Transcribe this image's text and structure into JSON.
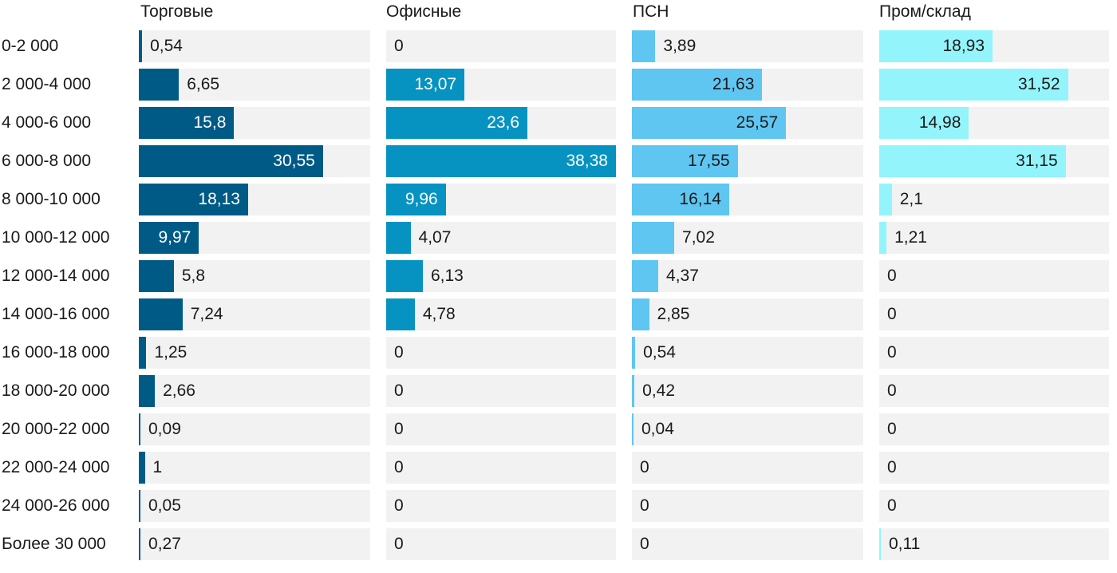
{
  "chart_data": {
    "type": "bar",
    "orientation": "horizontal",
    "layout": "small-multiples",
    "categories": [
      "0-2 000",
      "2 000-4 000",
      "4 000-6 000",
      "6 000-8 000",
      "8 000-10 000",
      "10 000-12 000",
      "12 000-14 000",
      "14 000-16 000",
      "16 000-18 000",
      "18 000-20 000",
      "20 000-22 000",
      "22 000-24 000",
      "24 000-26 000",
      "Более 30 000"
    ],
    "series": [
      {
        "name": "Торговые",
        "color": "#005a86",
        "label_inside_color": "#ffffff",
        "values": [
          0.54,
          6.65,
          15.8,
          30.55,
          18.13,
          9.97,
          5.8,
          7.24,
          1.25,
          2.66,
          0.09,
          1,
          0.05,
          0.27
        ],
        "labels": [
          "0,54",
          "6,65",
          "15,8",
          "30,55",
          "18,13",
          "9,97",
          "5,8",
          "7,24",
          "1,25",
          "2,66",
          "0,09",
          "1",
          "0,05",
          "0,27"
        ]
      },
      {
        "name": "Офисные",
        "color": "#0693c1",
        "label_inside_color": "#ffffff",
        "values": [
          0,
          13.07,
          23.6,
          38.38,
          9.96,
          4.07,
          6.13,
          4.78,
          0,
          0,
          0,
          0,
          0,
          0
        ],
        "labels": [
          "0",
          "13,07",
          "23,6",
          "38,38",
          "9,96",
          "4,07",
          "6,13",
          "4,78",
          "0",
          "0",
          "0",
          "0",
          "0",
          "0"
        ]
      },
      {
        "name": "ПСН",
        "color": "#5fc6f1",
        "label_inside_color": "#1a1a1a",
        "values": [
          3.89,
          21.63,
          25.57,
          17.55,
          16.14,
          7.02,
          4.37,
          2.85,
          0.54,
          0.42,
          0.04,
          0,
          0,
          0
        ],
        "labels": [
          "3,89",
          "21,63",
          "25,57",
          "17,55",
          "16,14",
          "7,02",
          "4,37",
          "2,85",
          "0,54",
          "0,42",
          "0,04",
          "0",
          "0",
          "0"
        ]
      },
      {
        "name": "Пром/склад",
        "color": "#93f4fb",
        "label_inside_color": "#1a1a1a",
        "values": [
          18.93,
          31.52,
          14.98,
          31.15,
          2.1,
          1.21,
          0,
          0,
          0,
          0,
          0,
          0,
          0,
          0.11
        ],
        "labels": [
          "18,93",
          "31,52",
          "14,98",
          "31,15",
          "2,1",
          "1,21",
          "0",
          "0",
          "0",
          "0",
          "0",
          "0",
          "0",
          "0,11"
        ]
      }
    ],
    "track_color": "#f2f2f2",
    "label_outside_color": "#1a1a1a",
    "grid": false,
    "legend": "none"
  }
}
